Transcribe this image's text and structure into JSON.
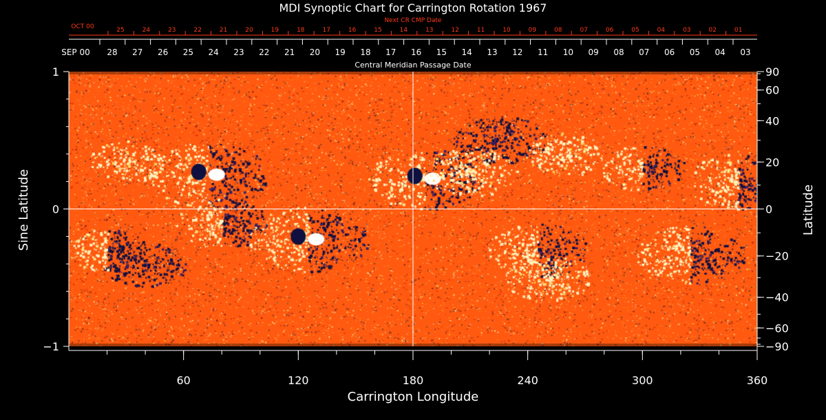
{
  "chart_data": {
    "type": "heatmap",
    "title": "MDI Synoptic Chart for Carrington Rotation 1967",
    "xlabel": "Carrington Longitude",
    "ylabel_left": "Sine Latitude",
    "ylabel_right": "Latitude",
    "top_axis_title": "Central Meridian Passage Date",
    "next_cr_label": "Next CR CMP Date",
    "xlim": [
      0,
      360
    ],
    "ylim": [
      -1,
      1
    ],
    "x_ticks": [
      60,
      120,
      180,
      240,
      300,
      360
    ],
    "y_ticks_left": [
      {
        "value": 1,
        "label": "1"
      },
      {
        "value": 0,
        "label": "0"
      },
      {
        "value": -1,
        "label": "−1"
      }
    ],
    "latitude_ticks": [
      {
        "deg": 90,
        "label": "90"
      },
      {
        "deg": 60,
        "label": "60"
      },
      {
        "deg": 40,
        "label": "40"
      },
      {
        "deg": 20,
        "label": "20"
      },
      {
        "deg": 0,
        "label": "0"
      },
      {
        "deg": -20,
        "label": "−20"
      },
      {
        "deg": -40,
        "label": "−40"
      },
      {
        "deg": -60,
        "label": "−60"
      },
      {
        "deg": -90,
        "label": "−90"
      }
    ],
    "cmp_month_label": "SEP 00",
    "cmp_dates": [
      "28",
      "27",
      "26",
      "25",
      "24",
      "23",
      "22",
      "21",
      "20",
      "19",
      "18",
      "17",
      "16",
      "15",
      "14",
      "13",
      "12",
      "11",
      "10",
      "09",
      "08",
      "07",
      "06",
      "05",
      "04",
      "03"
    ],
    "next_month_label": "OCT 00",
    "next_dates": [
      "25",
      "24",
      "23",
      "22",
      "21",
      "20",
      "19",
      "18",
      "17",
      "16",
      "15",
      "14",
      "13",
      "12",
      "11",
      "10",
      "09",
      "08",
      "07",
      "06",
      "05",
      "04",
      "03",
      "02",
      "01"
    ],
    "reference_lines": {
      "longitude": 180,
      "sine_latitude": 0
    },
    "colors": {
      "background": "#ff5a10",
      "positive": "#fff4c0",
      "negative": "#101040",
      "axes": "#ffffff",
      "next_cr_text": "#ff3a1a"
    },
    "regions": [
      {
        "lon": 73,
        "sinlat": 0.25,
        "polarity": "mixed",
        "strength": 0.95
      },
      {
        "lon": 125,
        "sinlat": -0.22,
        "polarity": "mixed",
        "strength": 0.95
      },
      {
        "lon": 186,
        "sinlat": 0.22,
        "polarity": "mixed",
        "strength": 0.85
      },
      {
        "lon": 325,
        "sinlat": -0.33,
        "polarity": "mixed",
        "strength": 0.8
      },
      {
        "lon": 350,
        "sinlat": 0.2,
        "polarity": "mixed",
        "strength": 0.75
      },
      {
        "lon": 225,
        "sinlat": 0.5,
        "polarity": "negative",
        "strength": 0.6
      },
      {
        "lon": 245,
        "sinlat": -0.3,
        "polarity": "mixed",
        "strength": 0.7
      },
      {
        "lon": 210,
        "sinlat": 0.28,
        "polarity": "positive",
        "strength": 0.6
      },
      {
        "lon": 80,
        "sinlat": -0.1,
        "polarity": "mixed",
        "strength": 0.6
      },
      {
        "lon": 40,
        "sinlat": -0.4,
        "polarity": "negative",
        "strength": 0.5
      },
      {
        "lon": 20,
        "sinlat": -0.3,
        "polarity": "mixed",
        "strength": 0.45
      },
      {
        "lon": 300,
        "sinlat": 0.3,
        "polarity": "mixed",
        "strength": 0.5
      },
      {
        "lon": 260,
        "sinlat": 0.4,
        "polarity": "positive",
        "strength": 0.45
      },
      {
        "lon": 250,
        "sinlat": -0.5,
        "polarity": "positive",
        "strength": 0.5
      },
      {
        "lon": 30,
        "sinlat": 0.35,
        "polarity": "positive",
        "strength": 0.4
      }
    ]
  }
}
